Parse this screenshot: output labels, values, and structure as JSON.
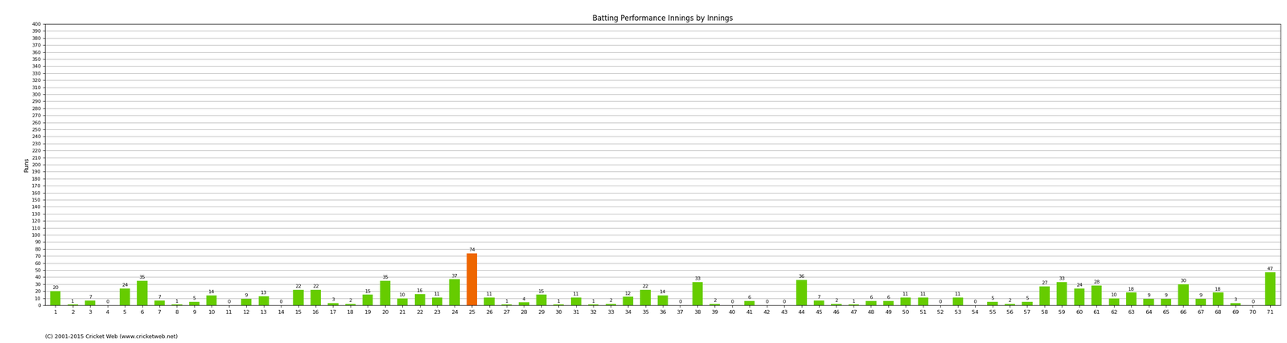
{
  "chart_data": {
    "type": "bar",
    "title": "Batting Performance Innings by Innings",
    "y_label": "Runs",
    "annotations": [
      "(C) 2001-2015 Cricket Web (www.cricketweb.net)"
    ],
    "categories": [
      "1",
      "2",
      "3",
      "4",
      "5",
      "6",
      "7",
      "8",
      "9",
      "10",
      "11",
      "12",
      "13",
      "14",
      "15",
      "16",
      "17",
      "18",
      "19",
      "20",
      "21",
      "22",
      "23",
      "24",
      "25",
      "26",
      "27",
      "28",
      "29",
      "30",
      "31",
      "32",
      "33",
      "34",
      "35",
      "36",
      "37",
      "38",
      "39",
      "40",
      "41",
      "42",
      "43",
      "44",
      "45",
      "46",
      "47",
      "48",
      "49",
      "50",
      "51",
      "52",
      "53",
      "54",
      "55",
      "56",
      "57",
      "58",
      "59",
      "60",
      "61",
      "62",
      "63",
      "64",
      "65",
      "66",
      "67",
      "68",
      "69",
      "70",
      "71"
    ],
    "values": [
      20,
      1,
      7,
      0,
      24,
      35,
      7,
      1,
      5,
      14,
      0,
      9,
      13,
      0,
      22,
      22,
      3,
      2,
      15,
      35,
      10,
      16,
      11,
      37,
      74,
      11,
      1,
      4,
      15,
      1,
      11,
      1,
      2,
      12,
      22,
      14,
      0,
      33,
      2,
      0,
      6,
      0,
      0,
      36,
      7,
      2,
      1,
      6,
      6,
      11,
      11,
      0,
      11,
      0,
      5,
      2,
      5,
      27,
      33,
      24,
      28,
      10,
      18,
      9,
      9,
      30,
      9,
      18,
      3,
      0,
      47
    ],
    "colors": [
      "#66cc00",
      "#66cc00",
      "#66cc00",
      "#66cc00",
      "#66cc00",
      "#66cc00",
      "#66cc00",
      "#66cc00",
      "#66cc00",
      "#66cc00",
      "#66cc00",
      "#66cc00",
      "#66cc00",
      "#66cc00",
      "#66cc00",
      "#66cc00",
      "#66cc00",
      "#66cc00",
      "#66cc00",
      "#66cc00",
      "#66cc00",
      "#66cc00",
      "#66cc00",
      "#66cc00",
      "#ee6600",
      "#66cc00",
      "#66cc00",
      "#66cc00",
      "#66cc00",
      "#66cc00",
      "#66cc00",
      "#66cc00",
      "#66cc00",
      "#66cc00",
      "#66cc00",
      "#66cc00",
      "#66cc00",
      "#66cc00",
      "#66cc00",
      "#66cc00",
      "#66cc00",
      "#66cc00",
      "#66cc00",
      "#66cc00",
      "#66cc00",
      "#66cc00",
      "#66cc00",
      "#66cc00",
      "#66cc00",
      "#66cc00",
      "#66cc00",
      "#66cc00",
      "#66cc00",
      "#66cc00",
      "#66cc00",
      "#66cc00",
      "#66cc00",
      "#66cc00",
      "#66cc00",
      "#66cc00",
      "#66cc00",
      "#66cc00",
      "#66cc00",
      "#66cc00",
      "#66cc00",
      "#66cc00",
      "#66cc00",
      "#66cc00",
      "#66cc00",
      "#66cc00",
      "#66cc00"
    ],
    "ylim": [
      0,
      400
    ],
    "yticks": [
      0,
      10,
      20,
      30,
      40,
      50,
      60,
      70,
      80,
      90,
      100,
      110,
      120,
      130,
      140,
      150,
      160,
      170,
      180,
      190,
      200,
      210,
      220,
      230,
      240,
      250,
      260,
      270,
      280,
      290,
      300,
      310,
      320,
      330,
      340,
      350,
      360,
      370,
      380,
      390,
      400
    ],
    "grid": true,
    "data_labels": true
  }
}
